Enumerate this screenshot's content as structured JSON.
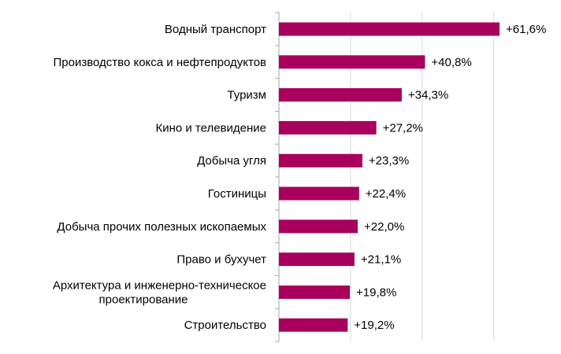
{
  "chart_data": {
    "type": "bar",
    "orientation": "horizontal",
    "categories": [
      "Водный транспорт",
      "Производство кокса и нефтепродуктов",
      "Туризм",
      "Кино и телевидение",
      "Добыча угля",
      "Гостиницы",
      "Добыча прочих полезных ископаемых",
      "Право и бухучет",
      "Архитектура и инженерно-техническое проектирование",
      "Строительство"
    ],
    "category_lines": [
      [
        "Водный транспорт"
      ],
      [
        "Производство кокса и нефтепродуктов"
      ],
      [
        "Туризм"
      ],
      [
        "Кино и телевидение"
      ],
      [
        "Добыча угля"
      ],
      [
        "Гостиницы"
      ],
      [
        "Добыча прочих полезных ископаемых"
      ],
      [
        "Право и бухучет"
      ],
      [
        "Архитектура и инженерно-техническое",
        "проектирование"
      ],
      [
        "Строительство"
      ]
    ],
    "values": [
      61.6,
      40.8,
      34.3,
      27.2,
      23.3,
      22.4,
      22.0,
      21.1,
      19.8,
      19.2
    ],
    "data_labels": [
      "+61,6%",
      "+40,8%",
      "+34,3%",
      "+27,2%",
      "+23,3%",
      "+22,4%",
      "+22,0%",
      "+21,1%",
      "+19,8%",
      "+19,2%"
    ],
    "xlim": [
      0,
      70
    ],
    "gridlines": [
      20,
      40,
      60
    ],
    "grid": true,
    "bar_color": "#a8005c",
    "grid_color": "#d9d9d9",
    "axis_color": "#a6a6a6",
    "title": "",
    "xlabel": "",
    "ylabel": ""
  }
}
